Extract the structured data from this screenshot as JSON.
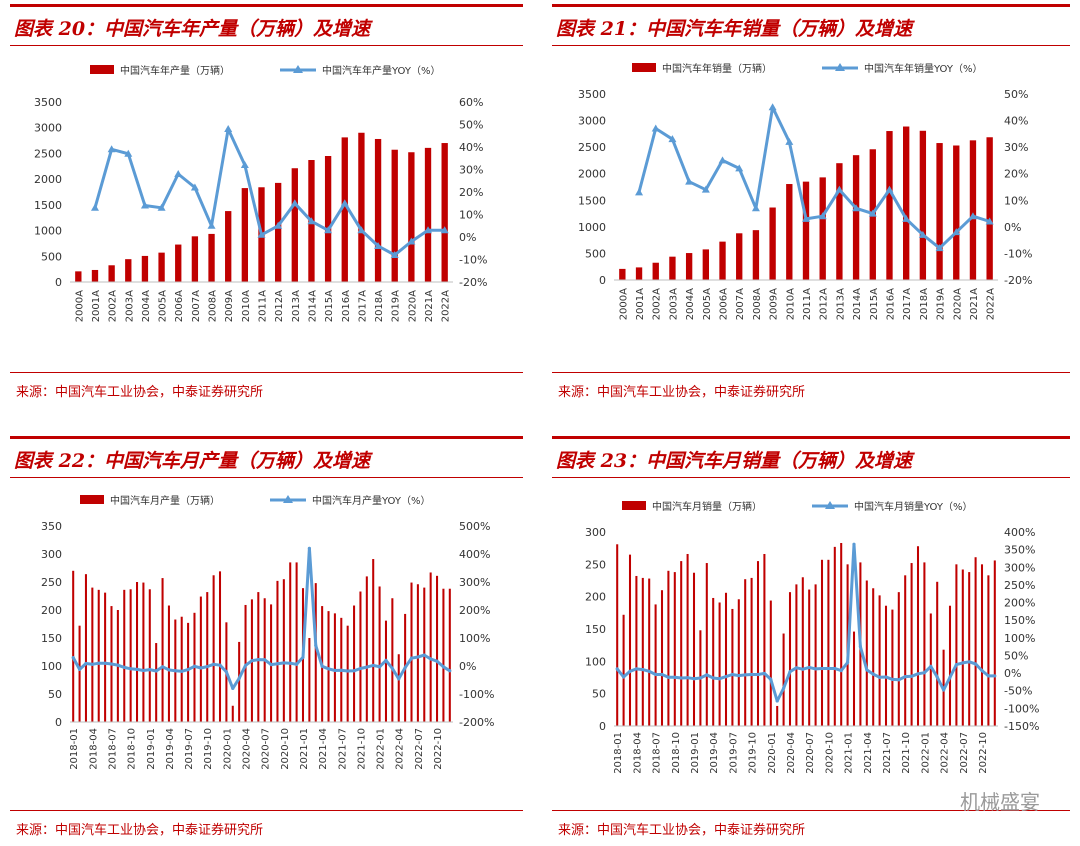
{
  "charts": [
    {
      "title": "图表 20：中国汽车年产量（万辆）及增速",
      "source": "来源：中国汽车工业协会，中泰证券研究所"
    },
    {
      "title": "图表 21：中国汽车年销量（万辆）及增速",
      "source": "来源：中国汽车工业协会，中泰证券研究所"
    },
    {
      "title": "图表 22：中国汽车月产量（万辆）及增速",
      "source": "来源：中国汽车工业协会，中泰证券研究所"
    },
    {
      "title": "图表 23：中国汽车月销量（万辆）及增速",
      "source": "来源：中国汽车工业协会，中泰证券研究所"
    }
  ],
  "watermark": "机械盛宴",
  "colors": {
    "bar": "#c00000",
    "line": "#5b9bd5",
    "accent": "#c00000"
  },
  "chart_data": [
    {
      "type": "bar",
      "title": "图表 20：中国汽车年产量（万辆）及增速",
      "categories": [
        "2000A",
        "2001A",
        "2002A",
        "2003A",
        "2004A",
        "2005A",
        "2006A",
        "2007A",
        "2008A",
        "2009A",
        "2010A",
        "2011A",
        "2012A",
        "2013A",
        "2014A",
        "2015A",
        "2016A",
        "2017A",
        "2018A",
        "2019A",
        "2020A",
        "2021A",
        "2022A"
      ],
      "series": [
        {
          "name": "中国汽车年产量（万辆）",
          "axis": "left",
          "kind": "bar",
          "values": [
            207,
            234,
            325,
            444,
            507,
            571,
            728,
            888,
            935,
            1379,
            1826,
            1842,
            1927,
            2212,
            2372,
            2450,
            2812,
            2902,
            2781,
            2572,
            2523,
            2608,
            2702
          ]
        },
        {
          "name": "中国汽车年产量YOY（%）",
          "axis": "right",
          "kind": "line",
          "values": [
            null,
            13,
            39,
            37,
            14,
            13,
            28,
            22,
            5,
            48,
            32,
            1,
            5,
            15,
            7,
            3,
            15,
            3,
            -4,
            -8,
            -2,
            3,
            3
          ]
        }
      ],
      "ylim": [
        0,
        3500
      ],
      "yticks": [
        0,
        500,
        1000,
        1500,
        2000,
        2500,
        3000,
        3500
      ],
      "y2lim": [
        -20,
        60
      ],
      "y2ticks": [
        -20,
        -10,
        0,
        10,
        20,
        30,
        40,
        50,
        60
      ],
      "y2suffix": "%"
    },
    {
      "type": "bar",
      "title": "图表 21：中国汽车年销量（万辆）及增速",
      "categories": [
        "2000A",
        "2001A",
        "2002A",
        "2003A",
        "2004A",
        "2005A",
        "2006A",
        "2007A",
        "2008A",
        "2009A",
        "2010A",
        "2011A",
        "2012A",
        "2013A",
        "2014A",
        "2015A",
        "2016A",
        "2017A",
        "2018A",
        "2019A",
        "2020A",
        "2021A",
        "2022A"
      ],
      "series": [
        {
          "name": "中国汽车年销量（万辆）",
          "axis": "left",
          "kind": "bar",
          "values": [
            209,
            237,
            325,
            439,
            507,
            576,
            722,
            879,
            938,
            1364,
            1806,
            1851,
            1931,
            2198,
            2349,
            2460,
            2803,
            2888,
            2808,
            2577,
            2531,
            2628,
            2686
          ]
        },
        {
          "name": "中国汽车年销量YOY（%）",
          "axis": "right",
          "kind": "line",
          "values": [
            null,
            13,
            37,
            33,
            17,
            14,
            25,
            22,
            7,
            45,
            32,
            3,
            4,
            14,
            7,
            5,
            14,
            3,
            -3,
            -8,
            -2,
            4,
            2
          ]
        }
      ],
      "ylim": [
        0,
        3500
      ],
      "yticks": [
        0,
        500,
        1000,
        1500,
        2000,
        2500,
        3000,
        3500
      ],
      "y2lim": [
        -20,
        50
      ],
      "y2ticks": [
        -20,
        -10,
        0,
        10,
        20,
        30,
        40,
        50
      ],
      "y2suffix": "%"
    },
    {
      "type": "bar",
      "title": "图表 22：中国汽车月产量（万辆）及增速",
      "categories": [
        "2018-01",
        "2018-02",
        "2018-03",
        "2018-04",
        "2018-05",
        "2018-06",
        "2018-07",
        "2018-08",
        "2018-09",
        "2018-10",
        "2018-11",
        "2018-12",
        "2019-01",
        "2019-02",
        "2019-03",
        "2019-04",
        "2019-05",
        "2019-06",
        "2019-07",
        "2019-08",
        "2019-09",
        "2019-10",
        "2019-11",
        "2019-12",
        "2020-01",
        "2020-02",
        "2020-03",
        "2020-04",
        "2020-05",
        "2020-06",
        "2020-07",
        "2020-08",
        "2020-09",
        "2020-10",
        "2020-11",
        "2020-12",
        "2021-01",
        "2021-02",
        "2021-03",
        "2021-04",
        "2021-05",
        "2021-06",
        "2021-07",
        "2021-08",
        "2021-09",
        "2021-10",
        "2021-11",
        "2021-12",
        "2022-01",
        "2022-02",
        "2022-03",
        "2022-04",
        "2022-05",
        "2022-06",
        "2022-07",
        "2022-08",
        "2022-09",
        "2022-10",
        "2022-11",
        "2022-12"
      ],
      "tick_labels": [
        "2018-01",
        "2018-04",
        "2018-07",
        "2018-10",
        "2019-01",
        "2019-04",
        "2019-07",
        "2019-10",
        "2020-01",
        "2020-04",
        "2020-07",
        "2020-10",
        "2021-01",
        "2021-04",
        "2021-07",
        "2021-10",
        "2022-01",
        "2022-04",
        "2022-07",
        "2022-10"
      ],
      "series": [
        {
          "name": "中国汽车月产量（万辆）",
          "axis": "left",
          "kind": "bar",
          "values": [
            270,
            172,
            264,
            240,
            236,
            231,
            207,
            200,
            236,
            237,
            250,
            249,
            237,
            141,
            257,
            208,
            183,
            188,
            177,
            195,
            224,
            232,
            262,
            269,
            178,
            29,
            143,
            209,
            219,
            232,
            221,
            210,
            252,
            255,
            285,
            285,
            239,
            150,
            248,
            207,
            198,
            194,
            186,
            172,
            208,
            233,
            260,
            291,
            242,
            181,
            221,
            121,
            193,
            249,
            246,
            240,
            267,
            261,
            238,
            238
          ]
        },
        {
          "name": "中国汽车月产量YOY（%）",
          "axis": "right",
          "kind": "line",
          "values": [
            30,
            -12,
            9,
            6,
            10,
            10,
            7,
            3,
            -5,
            -10,
            -12,
            -16,
            -13,
            -18,
            -3,
            -14,
            -17,
            -19,
            -13,
            -1,
            -7,
            -2,
            6,
            3,
            -21,
            -80,
            -44,
            2,
            19,
            23,
            22,
            5,
            8,
            11,
            10,
            6,
            31,
            420,
            73,
            -1,
            -10,
            -16,
            -15,
            -18,
            -17,
            -9,
            -4,
            2,
            -3,
            20,
            -9,
            -46,
            -6,
            28,
            32,
            39,
            25,
            17,
            -3,
            -17
          ]
        }
      ],
      "ylim": [
        0,
        350
      ],
      "yticks": [
        0,
        50,
        100,
        150,
        200,
        250,
        300,
        350
      ],
      "y2lim": [
        -200,
        500
      ],
      "y2ticks": [
        -200,
        -100,
        0,
        100,
        200,
        300,
        400,
        500
      ],
      "y2suffix": "%"
    },
    {
      "type": "bar",
      "title": "图表 23：中国汽车月销量（万辆）及增速",
      "categories": [
        "2018-01",
        "2018-02",
        "2018-03",
        "2018-04",
        "2018-05",
        "2018-06",
        "2018-07",
        "2018-08",
        "2018-09",
        "2018-10",
        "2018-11",
        "2018-12",
        "2019-01",
        "2019-02",
        "2019-03",
        "2019-04",
        "2019-05",
        "2019-06",
        "2019-07",
        "2019-08",
        "2019-09",
        "2019-10",
        "2019-11",
        "2019-12",
        "2020-01",
        "2020-02",
        "2020-03",
        "2020-04",
        "2020-05",
        "2020-06",
        "2020-07",
        "2020-08",
        "2020-09",
        "2020-10",
        "2020-11",
        "2020-12",
        "2021-01",
        "2021-02",
        "2021-03",
        "2021-04",
        "2021-05",
        "2021-06",
        "2021-07",
        "2021-08",
        "2021-09",
        "2021-10",
        "2021-11",
        "2021-12",
        "2022-01",
        "2022-02",
        "2022-03",
        "2022-04",
        "2022-05",
        "2022-06",
        "2022-07",
        "2022-08",
        "2022-09",
        "2022-10",
        "2022-11",
        "2022-12"
      ],
      "tick_labels": [
        "2018-01",
        "2018-04",
        "2018-07",
        "2018-10",
        "2019-01",
        "2019-04",
        "2019-07",
        "2019-10",
        "2020-01",
        "2020-04",
        "2020-07",
        "2020-10",
        "2021-01",
        "2021-04",
        "2021-07",
        "2021-10",
        "2022-01",
        "2022-04",
        "2022-07",
        "2022-10"
      ],
      "series": [
        {
          "name": "中国汽车月销量（万辆）",
          "axis": "left",
          "kind": "bar",
          "values": [
            281,
            172,
            265,
            232,
            229,
            228,
            188,
            210,
            240,
            238,
            255,
            266,
            237,
            148,
            252,
            198,
            191,
            206,
            181,
            196,
            227,
            229,
            255,
            266,
            194,
            31,
            143,
            207,
            219,
            230,
            211,
            219,
            257,
            257,
            277,
            283,
            250,
            146,
            253,
            225,
            213,
            202,
            186,
            180,
            207,
            233,
            252,
            278,
            253,
            174,
            223,
            118,
            186,
            250,
            242,
            238,
            261,
            250,
            233,
            256
          ]
        },
        {
          "name": "中国汽车月销量YOY（%）",
          "axis": "right",
          "kind": "line",
          "values": [
            12,
            -11,
            5,
            12,
            10,
            5,
            -4,
            -4,
            -12,
            -12,
            -14,
            -13,
            -16,
            -14,
            -5,
            -14,
            -16,
            -10,
            -4,
            -7,
            -5,
            -4,
            -4,
            -1,
            -18,
            -79,
            -43,
            4,
            15,
            11,
            16,
            12,
            13,
            13,
            13,
            7,
            30,
            365,
            75,
            9,
            -3,
            -12,
            -11,
            -18,
            -19,
            -10,
            -9,
            -2,
            1,
            19,
            -11,
            -48,
            -12,
            24,
            29,
            32,
            26,
            7,
            -8,
            -8
          ]
        }
      ],
      "ylim": [
        0,
        300
      ],
      "yticks": [
        0,
        50,
        100,
        150,
        200,
        250,
        300
      ],
      "y2lim": [
        -150,
        400
      ],
      "y2ticks": [
        -150,
        -100,
        -50,
        0,
        50,
        100,
        150,
        200,
        250,
        300,
        350,
        400
      ],
      "y2suffix": "%"
    }
  ]
}
